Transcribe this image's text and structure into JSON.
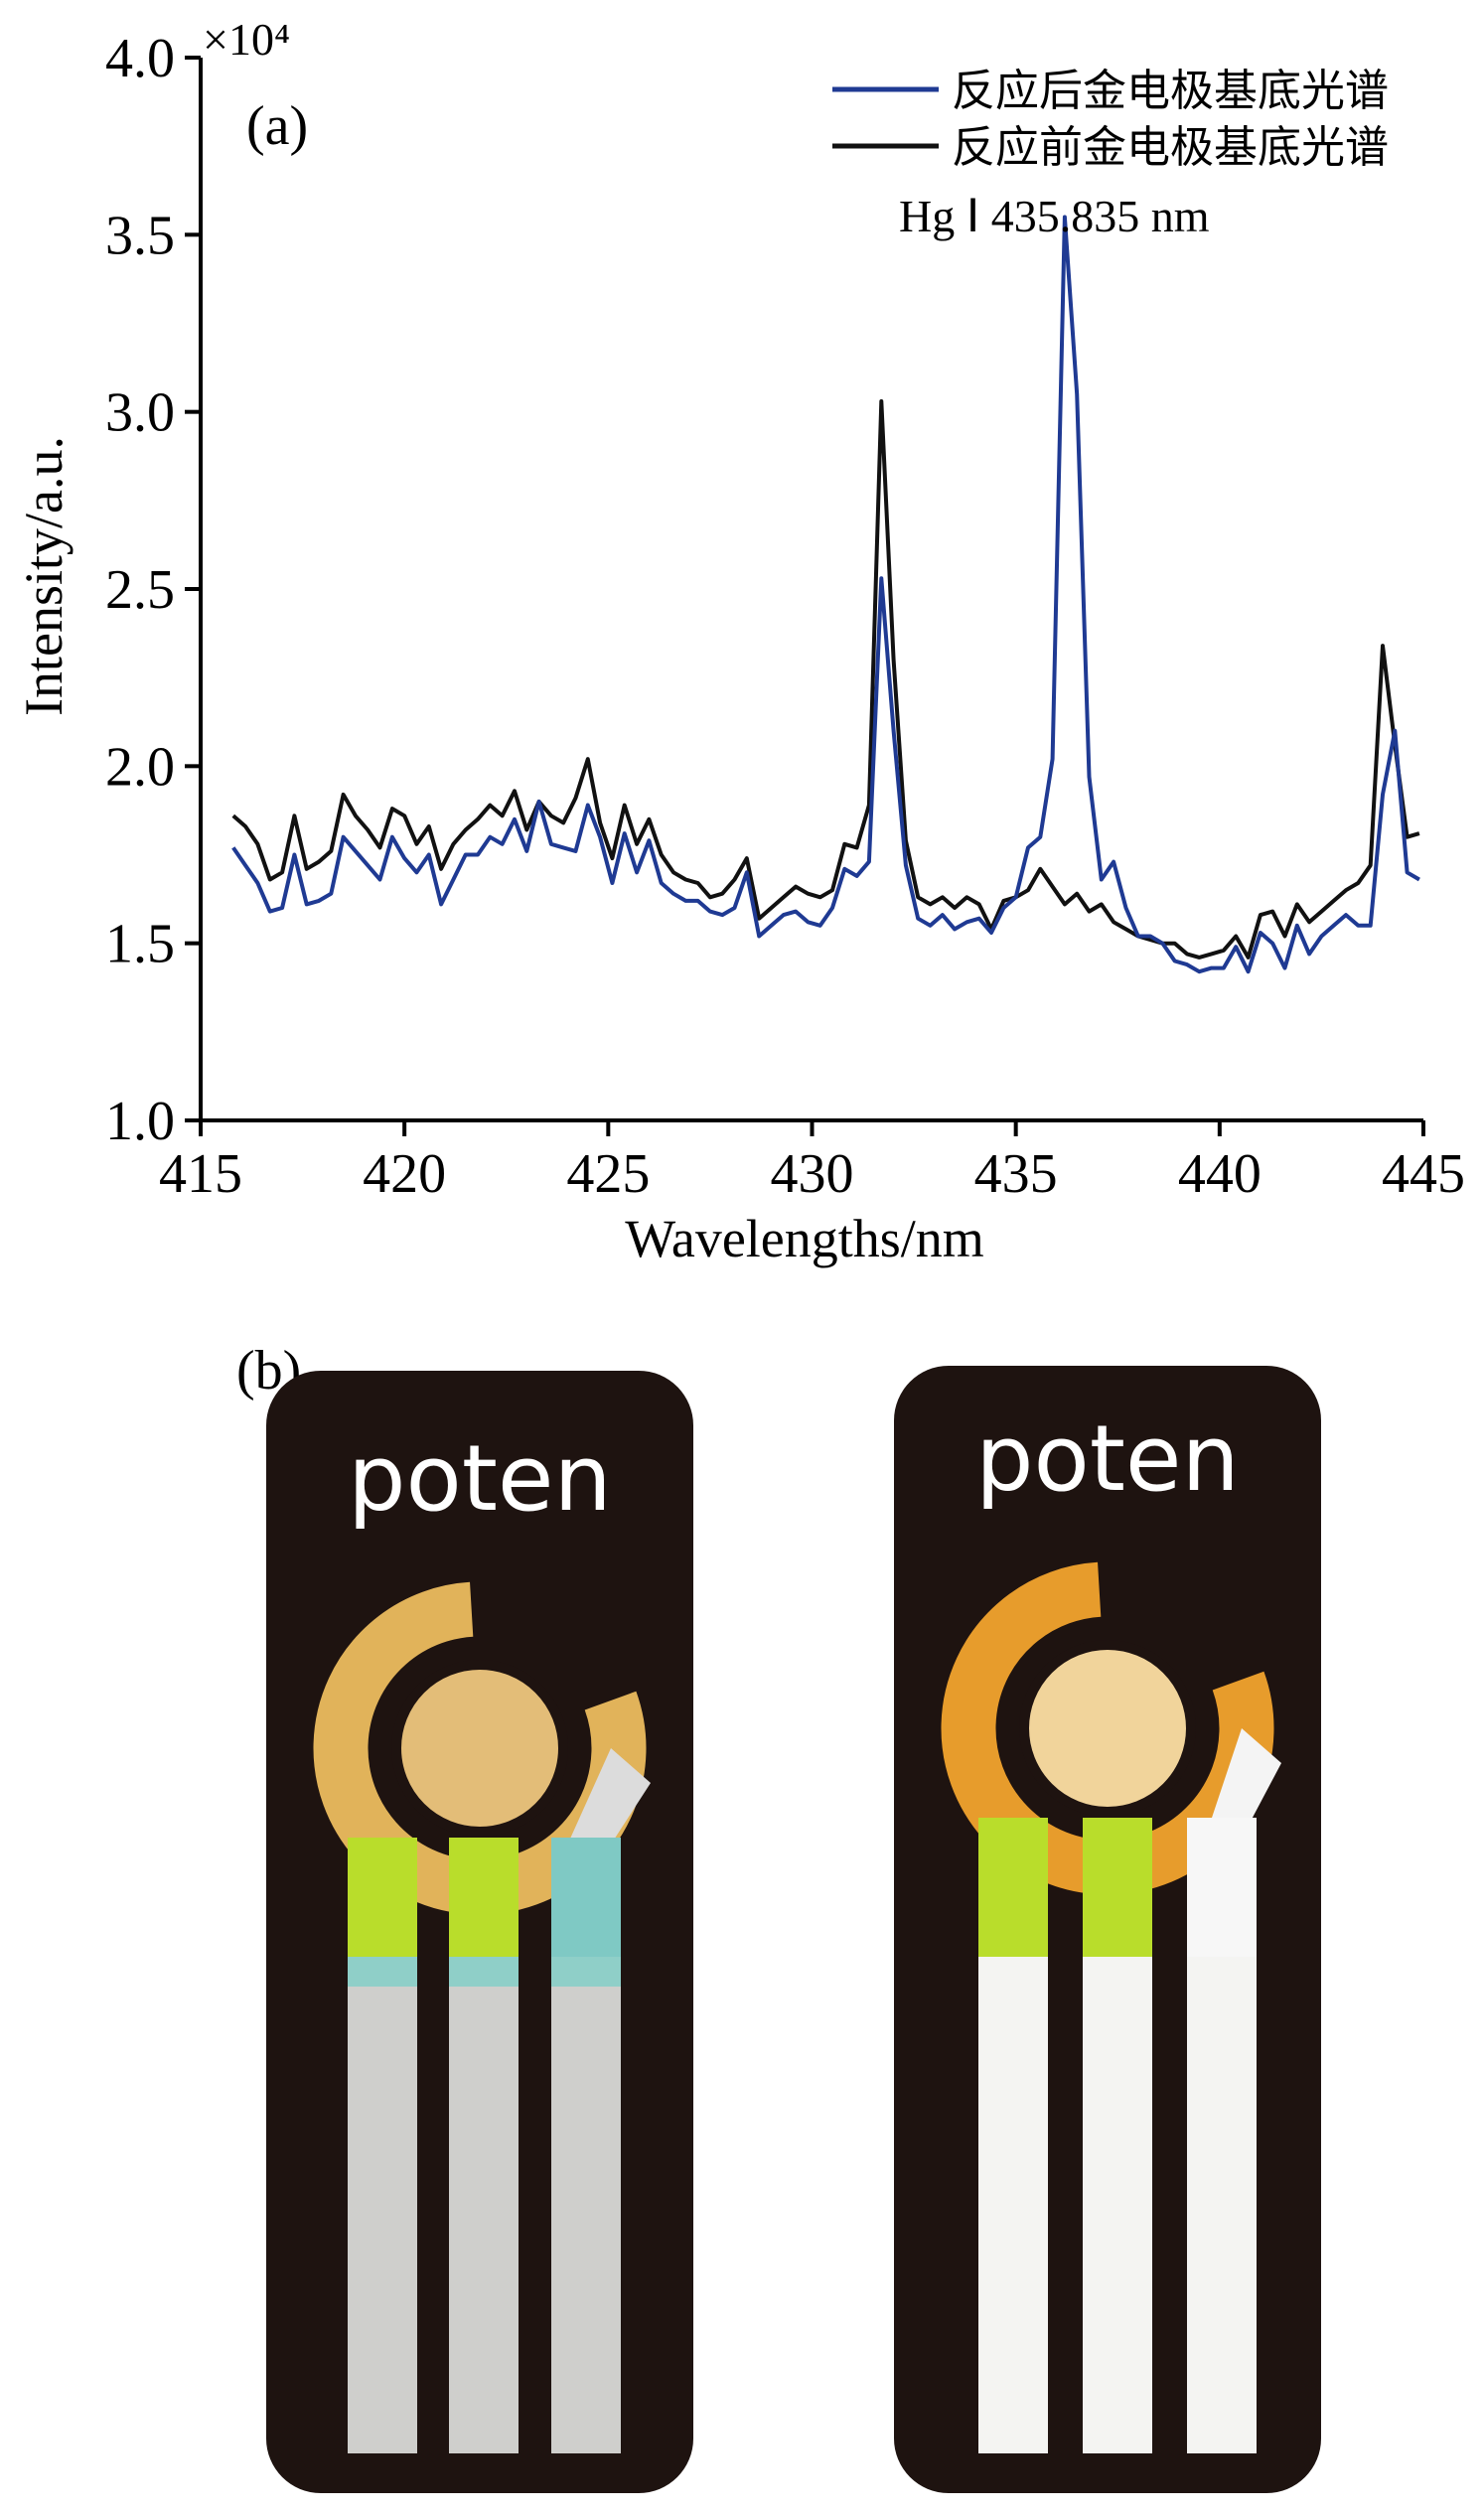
{
  "panel_a_label": "(a)",
  "panel_b_label": "(b)",
  "annotation": "Hg Ⅰ 435.835 nm",
  "chart_data": {
    "type": "line",
    "xlabel": "Wavelengths/nm",
    "ylabel": "Intensity/a.u.",
    "y_multiplier": "×10⁴",
    "xlim": [
      415,
      445
    ],
    "ylim": [
      1.0,
      4.0
    ],
    "x_ticks": [
      "415",
      "420",
      "425",
      "430",
      "435",
      "440",
      "445"
    ],
    "y_ticks": [
      "1.0",
      "1.5",
      "2.0",
      "2.5",
      "3.0",
      "3.5",
      "4.0"
    ],
    "legend_position": "top-right",
    "grid": false,
    "series": [
      {
        "name": "反应后金电极基底光谱",
        "color": "#1f3a93",
        "points": [
          [
            415.8,
            1.77
          ],
          [
            416.1,
            1.72
          ],
          [
            416.4,
            1.67
          ],
          [
            416.7,
            1.59
          ],
          [
            417.0,
            1.6
          ],
          [
            417.3,
            1.75
          ],
          [
            417.6,
            1.61
          ],
          [
            417.9,
            1.62
          ],
          [
            418.2,
            1.64
          ],
          [
            418.5,
            1.8
          ],
          [
            418.8,
            1.76
          ],
          [
            419.1,
            1.72
          ],
          [
            419.4,
            1.68
          ],
          [
            419.7,
            1.8
          ],
          [
            420.0,
            1.74
          ],
          [
            420.3,
            1.7
          ],
          [
            420.6,
            1.75
          ],
          [
            420.9,
            1.61
          ],
          [
            421.2,
            1.68
          ],
          [
            421.5,
            1.75
          ],
          [
            421.8,
            1.75
          ],
          [
            422.1,
            1.8
          ],
          [
            422.4,
            1.78
          ],
          [
            422.7,
            1.85
          ],
          [
            423.0,
            1.76
          ],
          [
            423.3,
            1.9
          ],
          [
            423.6,
            1.78
          ],
          [
            423.9,
            1.77
          ],
          [
            424.2,
            1.76
          ],
          [
            424.5,
            1.89
          ],
          [
            424.8,
            1.8
          ],
          [
            425.1,
            1.67
          ],
          [
            425.4,
            1.81
          ],
          [
            425.7,
            1.7
          ],
          [
            426.0,
            1.79
          ],
          [
            426.3,
            1.67
          ],
          [
            426.6,
            1.64
          ],
          [
            426.9,
            1.62
          ],
          [
            427.2,
            1.62
          ],
          [
            427.5,
            1.59
          ],
          [
            427.8,
            1.58
          ],
          [
            428.1,
            1.6
          ],
          [
            428.4,
            1.7
          ],
          [
            428.7,
            1.52
          ],
          [
            429.0,
            1.55
          ],
          [
            429.3,
            1.58
          ],
          [
            429.6,
            1.59
          ],
          [
            429.9,
            1.56
          ],
          [
            430.2,
            1.55
          ],
          [
            430.5,
            1.6
          ],
          [
            430.8,
            1.71
          ],
          [
            431.1,
            1.69
          ],
          [
            431.4,
            1.73
          ],
          [
            431.7,
            2.53
          ],
          [
            432.0,
            2.1
          ],
          [
            432.3,
            1.72
          ],
          [
            432.6,
            1.57
          ],
          [
            432.9,
            1.55
          ],
          [
            433.2,
            1.58
          ],
          [
            433.5,
            1.54
          ],
          [
            433.8,
            1.56
          ],
          [
            434.1,
            1.57
          ],
          [
            434.4,
            1.53
          ],
          [
            434.7,
            1.6
          ],
          [
            435.0,
            1.63
          ],
          [
            435.3,
            1.77
          ],
          [
            435.6,
            1.8
          ],
          [
            435.9,
            2.02
          ],
          [
            436.2,
            3.55
          ],
          [
            436.5,
            3.05
          ],
          [
            436.8,
            1.97
          ],
          [
            437.1,
            1.68
          ],
          [
            437.4,
            1.73
          ],
          [
            437.7,
            1.6
          ],
          [
            438.0,
            1.52
          ],
          [
            438.3,
            1.52
          ],
          [
            438.6,
            1.5
          ],
          [
            438.9,
            1.45
          ],
          [
            439.2,
            1.44
          ],
          [
            439.5,
            1.42
          ],
          [
            439.8,
            1.43
          ],
          [
            440.1,
            1.43
          ],
          [
            440.4,
            1.49
          ],
          [
            440.7,
            1.42
          ],
          [
            441.0,
            1.53
          ],
          [
            441.3,
            1.5
          ],
          [
            441.6,
            1.43
          ],
          [
            441.9,
            1.55
          ],
          [
            442.2,
            1.47
          ],
          [
            442.5,
            1.52
          ],
          [
            442.8,
            1.55
          ],
          [
            443.1,
            1.58
          ],
          [
            443.4,
            1.55
          ],
          [
            443.7,
            1.55
          ],
          [
            444.0,
            1.92
          ],
          [
            444.3,
            2.1
          ],
          [
            444.6,
            1.7
          ],
          [
            444.9,
            1.68
          ]
        ]
      },
      {
        "name": "反应前金电极基底光谱",
        "color": "#111111",
        "points": [
          [
            415.8,
            1.86
          ],
          [
            416.1,
            1.83
          ],
          [
            416.4,
            1.78
          ],
          [
            416.7,
            1.68
          ],
          [
            417.0,
            1.7
          ],
          [
            417.3,
            1.86
          ],
          [
            417.6,
            1.71
          ],
          [
            417.9,
            1.73
          ],
          [
            418.2,
            1.76
          ],
          [
            418.5,
            1.92
          ],
          [
            418.8,
            1.86
          ],
          [
            419.1,
            1.82
          ],
          [
            419.4,
            1.77
          ],
          [
            419.7,
            1.88
          ],
          [
            420.0,
            1.86
          ],
          [
            420.3,
            1.78
          ],
          [
            420.6,
            1.83
          ],
          [
            420.9,
            1.71
          ],
          [
            421.2,
            1.78
          ],
          [
            421.5,
            1.82
          ],
          [
            421.8,
            1.85
          ],
          [
            422.1,
            1.89
          ],
          [
            422.4,
            1.86
          ],
          [
            422.7,
            1.93
          ],
          [
            423.0,
            1.82
          ],
          [
            423.3,
            1.9
          ],
          [
            423.6,
            1.86
          ],
          [
            423.9,
            1.84
          ],
          [
            424.2,
            1.91
          ],
          [
            424.5,
            2.02
          ],
          [
            424.8,
            1.84
          ],
          [
            425.1,
            1.74
          ],
          [
            425.4,
            1.89
          ],
          [
            425.7,
            1.78
          ],
          [
            426.0,
            1.85
          ],
          [
            426.3,
            1.75
          ],
          [
            426.6,
            1.7
          ],
          [
            426.9,
            1.68
          ],
          [
            427.2,
            1.67
          ],
          [
            427.5,
            1.63
          ],
          [
            427.8,
            1.64
          ],
          [
            428.1,
            1.68
          ],
          [
            428.4,
            1.74
          ],
          [
            428.7,
            1.57
          ],
          [
            429.0,
            1.6
          ],
          [
            429.3,
            1.63
          ],
          [
            429.6,
            1.66
          ],
          [
            429.9,
            1.64
          ],
          [
            430.2,
            1.63
          ],
          [
            430.5,
            1.65
          ],
          [
            430.8,
            1.78
          ],
          [
            431.1,
            1.77
          ],
          [
            431.4,
            1.89
          ],
          [
            431.7,
            3.03
          ],
          [
            432.0,
            2.3
          ],
          [
            432.3,
            1.79
          ],
          [
            432.6,
            1.63
          ],
          [
            432.9,
            1.61
          ],
          [
            433.2,
            1.63
          ],
          [
            433.5,
            1.6
          ],
          [
            433.8,
            1.63
          ],
          [
            434.1,
            1.61
          ],
          [
            434.4,
            1.54
          ],
          [
            434.7,
            1.62
          ],
          [
            435.0,
            1.63
          ],
          [
            435.3,
            1.65
          ],
          [
            435.6,
            1.71
          ],
          [
            435.9,
            1.66
          ],
          [
            436.2,
            1.61
          ],
          [
            436.5,
            1.64
          ],
          [
            436.8,
            1.59
          ],
          [
            437.1,
            1.61
          ],
          [
            437.4,
            1.56
          ],
          [
            437.7,
            1.54
          ],
          [
            438.0,
            1.52
          ],
          [
            438.3,
            1.51
          ],
          [
            438.6,
            1.5
          ],
          [
            438.9,
            1.5
          ],
          [
            439.2,
            1.47
          ],
          [
            439.5,
            1.46
          ],
          [
            439.8,
            1.47
          ],
          [
            440.1,
            1.48
          ],
          [
            440.4,
            1.52
          ],
          [
            440.7,
            1.46
          ],
          [
            441.0,
            1.58
          ],
          [
            441.3,
            1.59
          ],
          [
            441.6,
            1.52
          ],
          [
            441.9,
            1.61
          ],
          [
            442.2,
            1.56
          ],
          [
            442.5,
            1.59
          ],
          [
            442.8,
            1.62
          ],
          [
            443.1,
            1.65
          ],
          [
            443.4,
            1.67
          ],
          [
            443.7,
            1.72
          ],
          [
            444.0,
            2.34
          ],
          [
            444.3,
            2.06
          ],
          [
            444.6,
            1.8
          ],
          [
            444.9,
            1.81
          ]
        ]
      }
    ]
  },
  "photo": {
    "electrodes": [
      {
        "logo": "poten",
        "state": "before"
      },
      {
        "logo": "poten",
        "state": "after"
      }
    ]
  }
}
